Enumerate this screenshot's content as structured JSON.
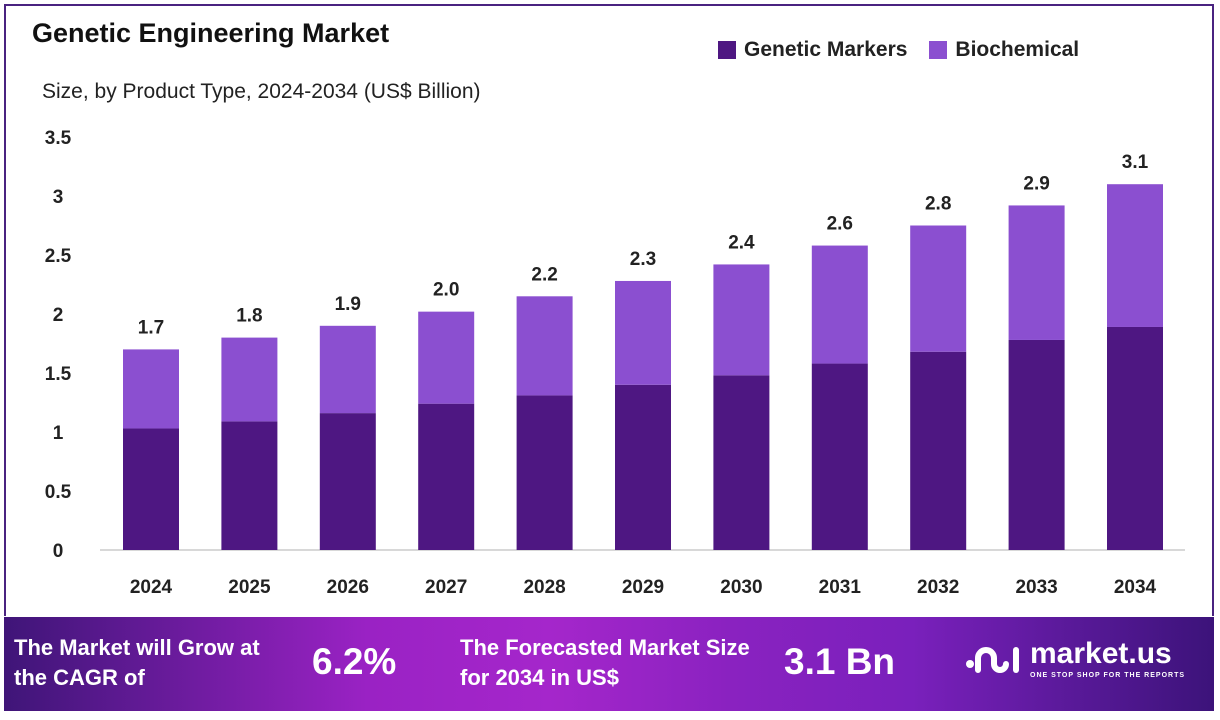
{
  "chart_data": {
    "type": "bar",
    "stacked": true,
    "title": "Genetic Engineering Market",
    "subtitle": "Size, by Product Type, 2024-2034 (US$ Billion)",
    "categories": [
      "2024",
      "2025",
      "2026",
      "2027",
      "2028",
      "2029",
      "2030",
      "2031",
      "2032",
      "2033",
      "2034"
    ],
    "series": [
      {
        "name": "Genetic Markers",
        "color": "#4e1782",
        "values": [
          1.03,
          1.09,
          1.16,
          1.24,
          1.31,
          1.4,
          1.48,
          1.58,
          1.68,
          1.78,
          1.89
        ]
      },
      {
        "name": "Biochemical",
        "color": "#8b4fd0",
        "values": [
          0.67,
          0.71,
          0.74,
          0.78,
          0.84,
          0.88,
          0.94,
          1.0,
          1.07,
          1.14,
          1.21
        ]
      }
    ],
    "totals_labels": [
      "1.7",
      "1.8",
      "1.9",
      "2.0",
      "2.2",
      "2.3",
      "2.4",
      "2.6",
      "2.8",
      "2.9",
      "3.1"
    ],
    "yticks": [
      "0",
      "0.5",
      "1",
      "1.5",
      "2",
      "2.5",
      "3",
      "3.5"
    ],
    "ylim": [
      0,
      3.5
    ],
    "grid": false,
    "legend": "top-right"
  },
  "banner": {
    "cagr_text": "The Market will Grow at the CAGR of",
    "cagr_value": "6.2%",
    "forecast_text": "The Forecasted Market Size for 2034 in US$",
    "forecast_value": "3.1 Bn",
    "logo_name": "market.us",
    "logo_tagline": "ONE STOP SHOP FOR THE REPORTS"
  }
}
